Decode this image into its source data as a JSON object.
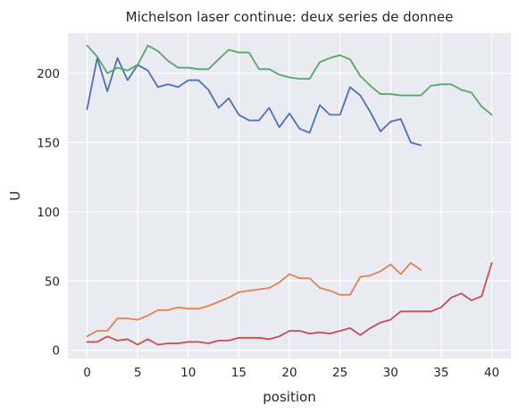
{
  "chart_data": {
    "type": "line",
    "title": "Michelson laser continue: deux series de donnee",
    "xlabel": "position",
    "ylabel": "U",
    "xlim": [
      -1.9,
      41.9
    ],
    "ylim": [
      -6,
      229
    ],
    "xticks": [
      0,
      5,
      10,
      15,
      20,
      25,
      30,
      35,
      40
    ],
    "yticks": [
      0,
      50,
      100,
      150,
      200
    ],
    "grid": true,
    "background": "#eaeaf2",
    "series": [
      {
        "color": "#4c72b0",
        "values": [
          174,
          211,
          187,
          211,
          195,
          206,
          202,
          190,
          192,
          190,
          195,
          195,
          188,
          175,
          182,
          170,
          166,
          166,
          175,
          161,
          171,
          160,
          157,
          177,
          170,
          170,
          190,
          184,
          172,
          158,
          165,
          167,
          150,
          148
        ]
      },
      {
        "color": "#dd8452",
        "values": [
          10,
          14,
          14,
          23,
          23,
          22,
          25,
          29,
          29,
          31,
          30,
          30,
          32,
          35,
          38,
          42,
          43,
          44,
          45,
          49,
          55,
          52,
          52,
          45,
          43,
          40,
          40,
          53,
          54,
          57,
          62,
          55,
          63,
          58
        ]
      },
      {
        "color": "#55a868",
        "values": [
          220,
          212,
          200,
          204,
          202,
          206,
          220,
          216,
          209,
          204,
          204,
          203,
          203,
          210,
          217,
          215,
          215,
          203,
          203,
          199,
          197,
          196,
          196,
          208,
          211,
          213,
          210,
          198,
          191,
          185,
          185,
          184,
          184,
          184,
          191,
          192,
          192,
          188,
          186,
          176,
          170
        ]
      },
      {
        "color": "#c44e52",
        "values": [
          6,
          6,
          10,
          7,
          8,
          4,
          8,
          4,
          5,
          5,
          6,
          6,
          5,
          7,
          7,
          9,
          9,
          9,
          8,
          10,
          14,
          14,
          12,
          13,
          12,
          14,
          16,
          11,
          16,
          20,
          22,
          28,
          28,
          28,
          28,
          31,
          38,
          41,
          36,
          39,
          63
        ]
      }
    ]
  }
}
